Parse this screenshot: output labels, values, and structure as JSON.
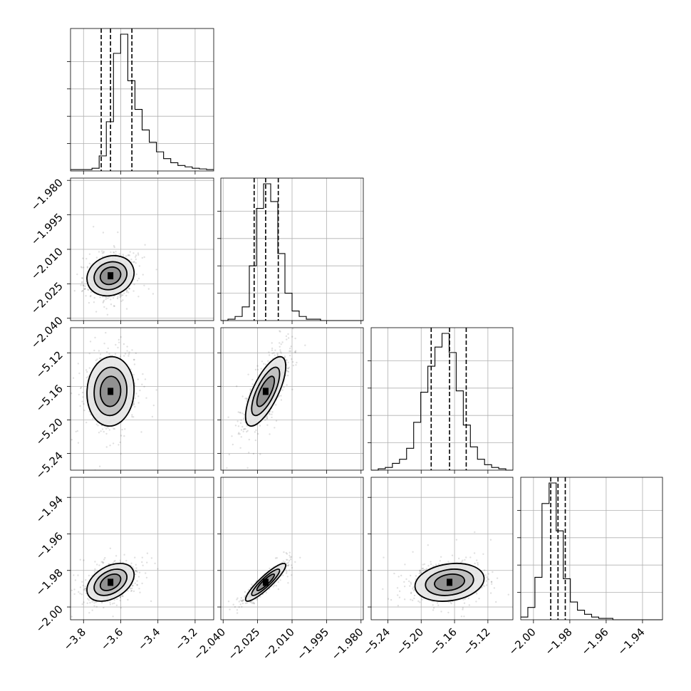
{
  "chart_data": {
    "type": "corner",
    "grid": true,
    "parameters": [
      {
        "index": 0,
        "range": [
          -3.87,
          -3.1
        ],
        "ticks": [
          -3.8,
          -3.6,
          -3.4,
          -3.2
        ],
        "tick_labels": [
          "−3.8",
          "−3.6",
          "−3.4",
          "−3.2"
        ],
        "median": -3.655,
        "quantiles": [
          -3.705,
          -3.655,
          -3.54
        ],
        "hist_max": 1.0,
        "histogram": [
          0.01,
          0.01,
          0.01,
          0.02,
          0.11,
          0.36,
          0.86,
          1.0,
          0.66,
          0.45,
          0.3,
          0.21,
          0.14,
          0.09,
          0.06,
          0.04,
          0.03,
          0.02,
          0.015,
          0.01
        ],
        "sd": 0.055
      },
      {
        "index": 1,
        "range": [
          -2.041,
          -1.979
        ],
        "ticks": [
          -2.04,
          -2.025,
          -2.01,
          -1.995,
          -1.98
        ],
        "tick_labels": [
          "−2.040",
          "−2.025",
          "−2.010",
          "−1.995",
          "−1.980"
        ],
        "median": -2.0215,
        "quantiles": [
          -2.0265,
          -2.0215,
          -2.016
        ],
        "hist_max": 1.0,
        "histogram": [
          0.0,
          0.01,
          0.03,
          0.1,
          0.4,
          0.82,
          1.0,
          0.87,
          0.49,
          0.2,
          0.07,
          0.03,
          0.01,
          0.01,
          0.0,
          0.0,
          0.0,
          0.0,
          0.0,
          0.0
        ],
        "sd": 0.0038
      },
      {
        "index": 2,
        "range": [
          -5.26,
          -5.09
        ],
        "ticks": [
          -5.24,
          -5.2,
          -5.16,
          -5.12
        ],
        "tick_labels": [
          "−5.24",
          "−5.20",
          "−5.16",
          "−5.12"
        ],
        "median": -5.166,
        "quantiles": [
          -5.188,
          -5.166,
          -5.146
        ],
        "hist_max": 1.0,
        "histogram": [
          0.0,
          0.01,
          0.02,
          0.05,
          0.08,
          0.16,
          0.35,
          0.57,
          0.76,
          0.9,
          1.0,
          0.86,
          0.58,
          0.33,
          0.17,
          0.08,
          0.04,
          0.02,
          0.01,
          0.0
        ],
        "sd": 0.018
      },
      {
        "index": 3,
        "range": [
          -2.007,
          -1.929
        ],
        "ticks": [
          -2.0,
          -1.98,
          -1.96,
          -1.94
        ],
        "tick_labels": [
          "−2.00",
          "−1.98",
          "−1.96",
          "−1.94"
        ],
        "median": -1.9865,
        "quantiles": [
          -1.9905,
          -1.9865,
          -1.9825
        ],
        "hist_max": 1.0,
        "histogram": [
          0.02,
          0.09,
          0.31,
          0.85,
          1.0,
          0.65,
          0.3,
          0.13,
          0.07,
          0.04,
          0.02,
          0.01,
          0.01,
          0.0,
          0.0,
          0.0,
          0.0,
          0.0,
          0.0,
          0.0
        ],
        "sd": 0.0045
      }
    ],
    "correlations": [
      {
        "x": 0,
        "y": 1,
        "rho": 0.15
      },
      {
        "x": 0,
        "y": 2,
        "rho": 0.05
      },
      {
        "x": 1,
        "y": 2,
        "rho": 0.72
      },
      {
        "x": 0,
        "y": 3,
        "rho": 0.4
      },
      {
        "x": 1,
        "y": 3,
        "rho": 0.9
      },
      {
        "x": 2,
        "y": 3,
        "rho": 0.2
      }
    ],
    "contour_levels_sigma": [
      1,
      1.6,
      2.3
    ]
  }
}
